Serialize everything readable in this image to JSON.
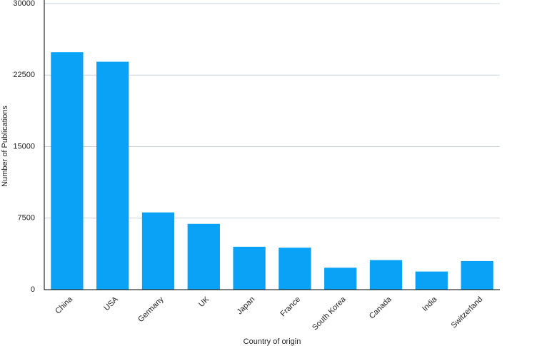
{
  "chart_data": {
    "type": "bar",
    "x_label": "Country of origin",
    "y_label": "Number of Publications",
    "categories": [
      "China",
      "USA",
      "Germany",
      "UK",
      "Japan",
      "France",
      "South Korea",
      "Canada",
      "India",
      "Switzerland"
    ],
    "values": [
      24900,
      23900,
      8100,
      6900,
      4500,
      4400,
      2300,
      3100,
      1900,
      3000
    ],
    "color": "#0aa2f6",
    "ylim": [
      0,
      30000
    ],
    "yticks": [
      0,
      7500,
      15000,
      22500,
      30000
    ],
    "grid": true
  }
}
